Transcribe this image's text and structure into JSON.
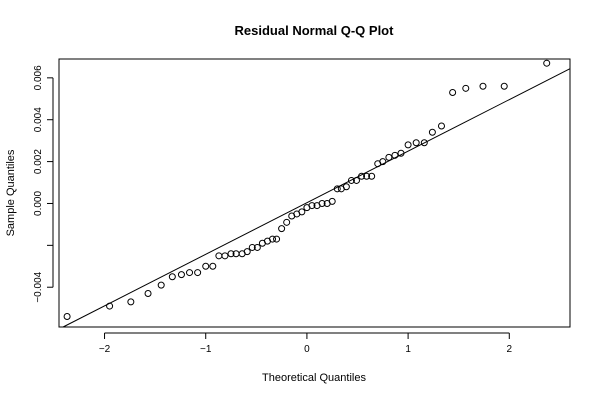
{
  "chart_data": {
    "type": "scatter",
    "title": "Residual Normal Q-Q Plot",
    "xlabel": "Theoretical Quantiles",
    "ylabel": "Sample Quantiles",
    "xlim": [
      -2.45,
      2.6
    ],
    "ylim": [
      -0.0059,
      0.0069
    ],
    "x_ticks": [
      -2,
      -1,
      0,
      1,
      2
    ],
    "x_tick_labels": [
      "−2",
      "−1",
      "0",
      "1",
      "2"
    ],
    "y_ticks": [
      -0.004,
      -0.002,
      0.0,
      0.002,
      0.004,
      0.006
    ],
    "y_tick_labels": [
      "−0.004",
      "",
      "0.000",
      "0.002",
      "0.004",
      "0.006"
    ],
    "grid": false,
    "reference_line": {
      "slope": 0.002463,
      "intercept": 3.47e-05
    },
    "points": {
      "x": [
        -2.37,
        -1.95,
        -1.74,
        -1.57,
        -1.44,
        -1.33,
        -1.24,
        -1.16,
        -1.08,
        -1.0,
        -0.93,
        -0.87,
        -0.81,
        -0.75,
        -0.7,
        -0.64,
        -0.59,
        -0.54,
        -0.49,
        -0.44,
        -0.39,
        -0.34,
        -0.3,
        -0.25,
        -0.2,
        -0.15,
        -0.1,
        -0.05,
        0.0,
        0.05,
        0.1,
        0.15,
        0.2,
        0.25,
        0.3,
        0.34,
        0.39,
        0.44,
        0.49,
        0.54,
        0.59,
        0.64,
        0.7,
        0.75,
        0.81,
        0.87,
        0.93,
        1.0,
        1.08,
        1.16,
        1.24,
        1.33,
        1.44,
        1.57,
        1.74,
        1.95,
        2.37
      ],
      "y": [
        -0.0054,
        -0.0049,
        -0.0047,
        -0.0043,
        -0.0039,
        -0.0035,
        -0.0034,
        -0.0033,
        -0.0033,
        -0.003,
        -0.003,
        -0.0025,
        -0.0025,
        -0.0024,
        -0.0024,
        -0.0024,
        -0.0023,
        -0.0021,
        -0.0021,
        -0.0019,
        -0.0018,
        -0.0017,
        -0.0017,
        -0.0012,
        -0.0009,
        -0.0006,
        -0.0005,
        -0.0004,
        -0.0002,
        -0.0001,
        -0.0001,
        0.0,
        0.0,
        0.0001,
        0.0007,
        0.0007,
        0.0008,
        0.0011,
        0.0011,
        0.0013,
        0.0013,
        0.0013,
        0.0019,
        0.002,
        0.0022,
        0.0023,
        0.0024,
        0.0028,
        0.0029,
        0.0029,
        0.0034,
        0.0037,
        0.0053,
        0.0055,
        0.0056,
        0.0056,
        0.0067
      ]
    }
  }
}
